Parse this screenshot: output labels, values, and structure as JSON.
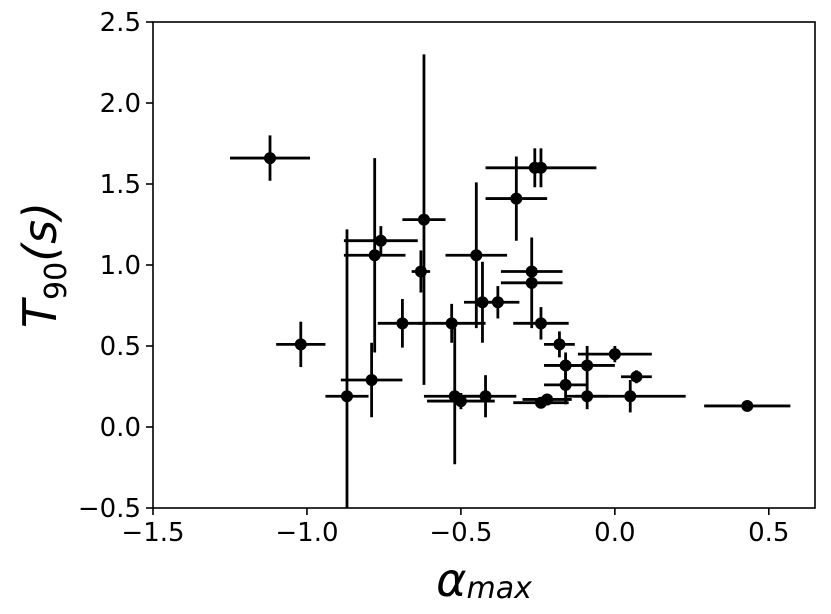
{
  "chart_data": {
    "type": "scatter",
    "title": "",
    "xlabel_main": "α",
    "xlabel_sub": "max",
    "ylabel_main": "T",
    "ylabel_sub": "90",
    "ylabel_rest": "(s)",
    "xlim": [
      -1.5,
      0.65
    ],
    "ylim": [
      -0.5,
      2.5
    ],
    "xticks": [
      -1.5,
      -1.0,
      -0.5,
      0.0,
      0.5
    ],
    "xtick_labels": [
      "−1.5",
      "−1.0",
      "−0.5",
      "0.0",
      "0.5"
    ],
    "yticks": [
      -0.5,
      0.0,
      0.5,
      1.0,
      1.5,
      2.0,
      2.5
    ],
    "ytick_labels": [
      "−0.5",
      "0.0",
      "0.5",
      "1.0",
      "1.5",
      "2.0",
      "2.5"
    ],
    "grid": false,
    "marker_color": "#000000",
    "points": [
      {
        "x": -1.12,
        "y": 1.66,
        "xerr": 0.13,
        "yerr": 0.14
      },
      {
        "x": -1.02,
        "y": 0.51,
        "xerr": 0.08,
        "yerr": 0.14
      },
      {
        "x": -0.87,
        "y": 0.19,
        "xerr": 0.07,
        "yerr": 1.03
      },
      {
        "x": -0.79,
        "y": 0.29,
        "xerr": 0.1,
        "yerr": 0.23
      },
      {
        "x": -0.78,
        "y": 1.06,
        "xerr": 0.1,
        "yerr": 0.6
      },
      {
        "x": -0.76,
        "y": 1.15,
        "xerr": 0.12,
        "yerr": 0.09
      },
      {
        "x": -0.69,
        "y": 0.64,
        "xerr": 0.08,
        "yerr": 0.15
      },
      {
        "x": -0.63,
        "y": 0.96,
        "xerr": 0.03,
        "yerr": 0.13
      },
      {
        "x": -0.62,
        "y": 1.28,
        "xerr": 0.07,
        "yerr": 1.02
      },
      {
        "x": -0.53,
        "y": 0.64,
        "xerr": 0.11,
        "yerr": 0.12
      },
      {
        "x": -0.52,
        "y": 0.19,
        "xerr": 0.1,
        "yerr": 0.42
      },
      {
        "x": -0.5,
        "y": 0.16,
        "xerr": 0.11,
        "yerr": 0.05
      },
      {
        "x": -0.45,
        "y": 1.06,
        "xerr": 0.1,
        "yerr": 0.45
      },
      {
        "x": -0.43,
        "y": 0.77,
        "xerr": 0.06,
        "yerr": 0.25
      },
      {
        "x": -0.42,
        "y": 0.19,
        "xerr": 0.1,
        "yerr": 0.13
      },
      {
        "x": -0.38,
        "y": 0.77,
        "xerr": 0.07,
        "yerr": 0.1
      },
      {
        "x": -0.32,
        "y": 1.41,
        "xerr": 0.1,
        "yerr": 0.26
      },
      {
        "x": -0.27,
        "y": 0.96,
        "xerr": 0.1,
        "yerr": 0.03
      },
      {
        "x": -0.27,
        "y": 0.89,
        "xerr": 0.1,
        "yerr": 0.28
      },
      {
        "x": -0.26,
        "y": 1.6,
        "xerr": 0.02,
        "yerr": 0.12
      },
      {
        "x": -0.24,
        "y": 1.6,
        "xerr": 0.18,
        "yerr": 0.12
      },
      {
        "x": -0.24,
        "y": 0.64,
        "xerr": 0.09,
        "yerr": 0.1
      },
      {
        "x": -0.24,
        "y": 0.15,
        "xerr": 0.09,
        "yerr": 0.03
      },
      {
        "x": -0.22,
        "y": 0.17,
        "xerr": 0.08,
        "yerr": 0.03
      },
      {
        "x": -0.18,
        "y": 0.51,
        "xerr": 0.05,
        "yerr": 0.08
      },
      {
        "x": -0.16,
        "y": 0.38,
        "xerr": 0.07,
        "yerr": 0.08
      },
      {
        "x": -0.16,
        "y": 0.26,
        "xerr": 0.07,
        "yerr": 0.12
      },
      {
        "x": -0.09,
        "y": 0.38,
        "xerr": 0.09,
        "yerr": 0.12
      },
      {
        "x": -0.09,
        "y": 0.19,
        "xerr": 0.07,
        "yerr": 0.08
      },
      {
        "x": 0.0,
        "y": 0.45,
        "xerr": 0.12,
        "yerr": 0.05
      },
      {
        "x": 0.05,
        "y": 0.19,
        "xerr": 0.18,
        "yerr": 0.1
      },
      {
        "x": 0.07,
        "y": 0.31,
        "xerr": 0.05,
        "yerr": 0.04
      },
      {
        "x": 0.43,
        "y": 0.13,
        "xerr": 0.14,
        "yerr": 0.03
      }
    ]
  }
}
